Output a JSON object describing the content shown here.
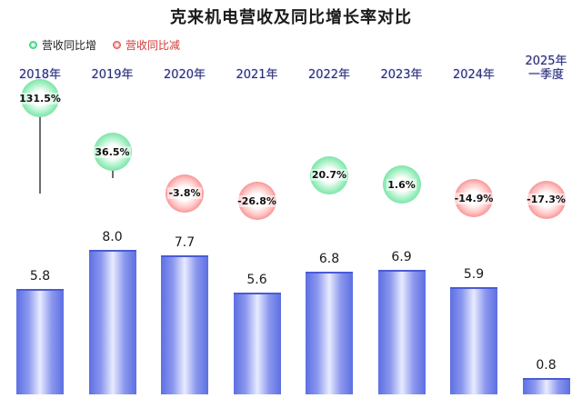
{
  "title": "克来机电营收及同比增长率对比",
  "legend": {
    "up": "营收同比增",
    "down": "营收同比减"
  },
  "colors": {
    "up": "#49d889",
    "down": "#f06060",
    "bar": "#5d6fe3"
  },
  "chart_data": {
    "type": "bar",
    "categories": [
      [
        "2018年"
      ],
      [
        "2019年"
      ],
      [
        "2020年"
      ],
      [
        "2021年"
      ],
      [
        "2022年"
      ],
      [
        "2023年"
      ],
      [
        "2024年"
      ],
      [
        "2025年",
        "一季度"
      ]
    ],
    "series": [
      {
        "values": [
          5.8,
          8.0,
          7.7,
          5.6,
          6.8,
          6.9,
          5.9,
          0.8
        ],
        "labels": [
          "5.8",
          "8.0",
          "7.7",
          "5.6",
          "6.8",
          "6.9",
          "5.9",
          "0.8"
        ]
      },
      {
        "values": [
          131.5,
          36.5,
          -3.8,
          -26.8,
          20.7,
          1.6,
          -14.9,
          -17.3
        ],
        "labels": [
          "131.5%",
          "36.5%",
          "-3.8%",
          "-26.8%",
          "20.7%",
          "1.6%",
          "-14.9%",
          "-17.3%"
        ]
      }
    ]
  }
}
